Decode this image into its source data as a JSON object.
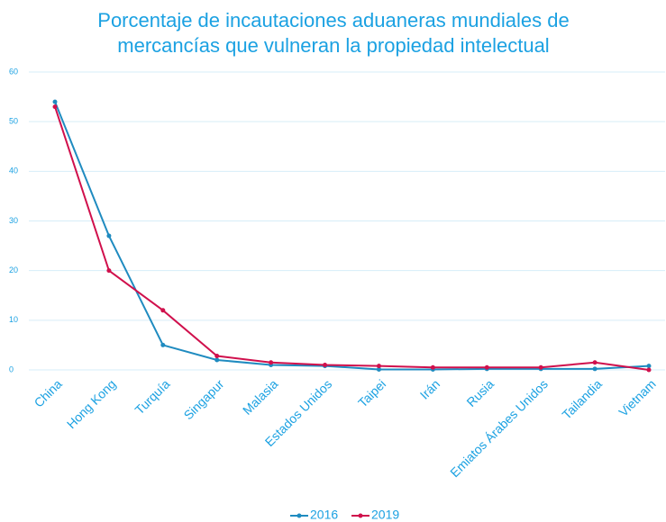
{
  "chart_data": {
    "type": "line",
    "title": [
      "Porcentaje de incautaciones aduaneras mundiales de",
      "mercancías que vulneran la propiedad intelectual"
    ],
    "categories": [
      "China",
      "Hong Kong",
      "Turquía",
      "Singapur",
      "Malasia",
      "Estados Unidos",
      "Taipei",
      "Irán",
      "Rusia",
      "Emiatos Árabes Unidos",
      "Tailandia",
      "Vietnam"
    ],
    "series": [
      {
        "name": "2016",
        "color": "#1f8bc0",
        "values": [
          54,
          27,
          5,
          2,
          1,
          0.8,
          0.1,
          0.1,
          0.2,
          0.2,
          0.2,
          0.8
        ]
      },
      {
        "name": "2019",
        "color": "#d0104c",
        "values": [
          53,
          20,
          12,
          2.8,
          1.5,
          1,
          0.8,
          0.5,
          0.5,
          0.5,
          1.5,
          0
        ]
      }
    ],
    "ylim": [
      0,
      60
    ],
    "yticks": [
      0,
      10,
      20,
      30,
      40,
      50,
      60
    ],
    "grid": true,
    "legend": "bottom"
  }
}
